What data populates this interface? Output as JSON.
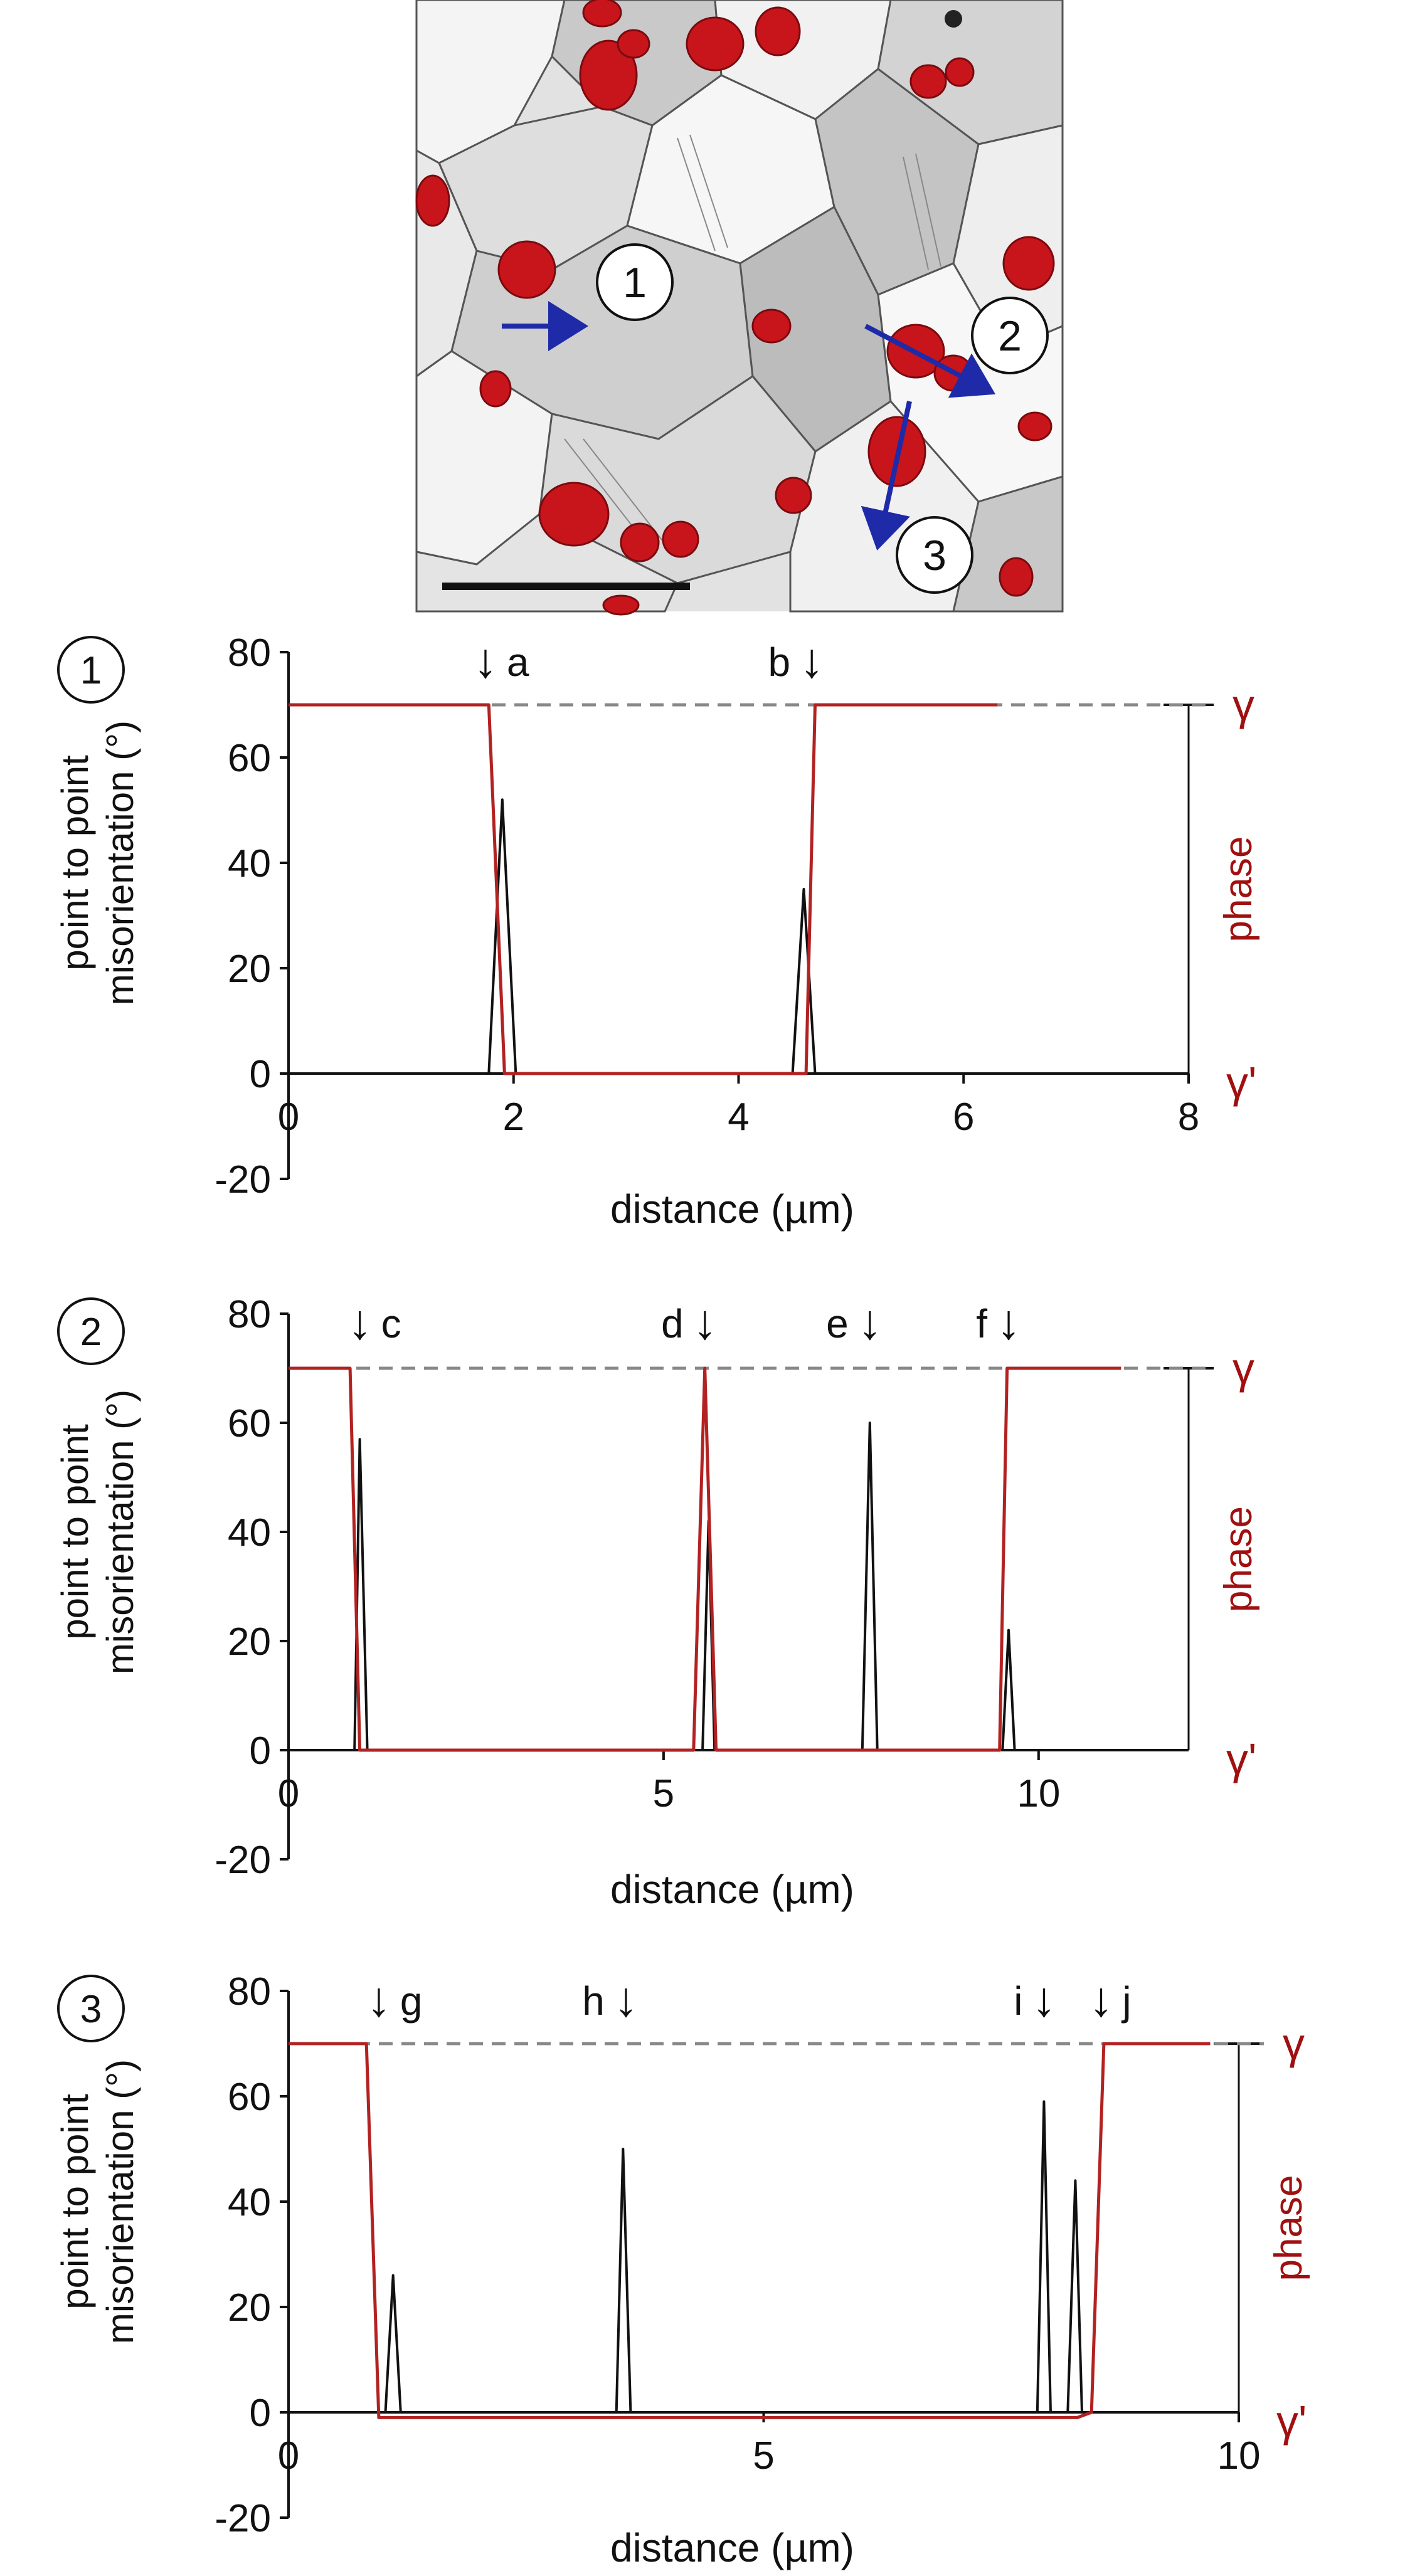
{
  "micrograph": {
    "description_marks": [
      "1",
      "2",
      "3"
    ]
  },
  "chart_data": [
    {
      "type": "line",
      "panel_label": "1",
      "xlabel": "distance (µm)",
      "ylabel_line1": "point  to point",
      "ylabel_line2": "misorientation (°)",
      "y2label": "phase",
      "y2_top_label": "γ",
      "y2_bottom_label": "γ'",
      "xlim": [
        0,
        8
      ],
      "ylim": [
        -20,
        80
      ],
      "xticks": [
        0,
        2,
        4,
        6,
        8
      ],
      "yticks": [
        -20,
        0,
        20,
        40,
        60,
        80
      ],
      "reference_level": 70,
      "series": [
        {
          "name": "point to point misorientation",
          "color": "#111111",
          "x": [
            0,
            1.7,
            1.78,
            1.9,
            2.02,
            2.1,
            4.4,
            4.48,
            4.58,
            4.68,
            4.76,
            6.3
          ],
          "y": [
            0,
            0,
            0,
            52,
            0,
            0,
            0,
            0,
            35,
            0,
            0,
            0
          ]
        },
        {
          "name": "phase",
          "color": "#b22222",
          "x": [
            0,
            1.72,
            1.78,
            1.92,
            4.46,
            4.6,
            4.68,
            6.3
          ],
          "y": [
            70,
            70,
            70,
            0,
            0,
            0,
            70,
            70
          ]
        }
      ],
      "annotations": [
        {
          "label": "a",
          "x": 1.75,
          "side": "right"
        },
        {
          "label": "b",
          "x": 4.65,
          "side": "left"
        }
      ]
    },
    {
      "type": "line",
      "panel_label": "2",
      "xlabel": "distance (µm)",
      "ylabel_line1": "point to point",
      "ylabel_line2": "misorientation (°)",
      "y2label": "phase",
      "y2_top_label": "γ",
      "y2_bottom_label": "γ'",
      "xlim": [
        0,
        12
      ],
      "ylim": [
        -20,
        80
      ],
      "xticks": [
        0,
        5,
        10
      ],
      "yticks": [
        -20,
        0,
        20,
        40,
        60,
        80
      ],
      "reference_level": 70,
      "series": [
        {
          "name": "point to point misorientation",
          "color": "#111111",
          "x": [
            0,
            0.8,
            0.88,
            0.95,
            1.05,
            1.15,
            5.45,
            5.52,
            5.6,
            5.68,
            5.75,
            7.55,
            7.65,
            7.75,
            7.85,
            7.95,
            9.45,
            9.52,
            9.6,
            9.68,
            9.75,
            10.9
          ],
          "y": [
            0,
            0,
            0,
            57,
            0,
            0,
            0,
            0,
            42,
            0,
            0,
            0,
            0,
            60,
            0,
            0,
            0,
            0,
            22,
            0,
            0,
            0
          ]
        },
        {
          "name": "phase",
          "color": "#b22222",
          "x": [
            0,
            0.75,
            0.82,
            0.95,
            5.4,
            5.55,
            5.7,
            9.35,
            9.48,
            9.58,
            11.1
          ],
          "y": [
            70,
            70,
            70,
            0,
            0,
            70,
            0,
            0,
            0,
            70,
            70
          ]
        }
      ],
      "annotations": [
        {
          "label": "c",
          "x": 0.95,
          "side": "right"
        },
        {
          "label": "d",
          "x": 5.55,
          "side": "left"
        },
        {
          "label": "e",
          "x": 7.75,
          "side": "left"
        },
        {
          "label": "f",
          "x": 9.6,
          "side": "left"
        }
      ]
    },
    {
      "type": "line",
      "panel_label": "3",
      "xlabel": "distance (µm)",
      "ylabel_line1": "point to point",
      "ylabel_line2": "misorientation (°)",
      "y2label": "phase",
      "y2_top_label": "γ",
      "y2_bottom_label": "γ'",
      "xlim": [
        0,
        10
      ],
      "ylim": [
        -20,
        80
      ],
      "xticks": [
        0,
        5,
        10
      ],
      "yticks": [
        -20,
        0,
        20,
        40,
        60,
        80
      ],
      "reference_level": 70,
      "series": [
        {
          "name": "point to point misorientation",
          "color": "#111111",
          "x": [
            0,
            0.95,
            1.02,
            1.1,
            1.18,
            1.25,
            3.4,
            3.45,
            3.52,
            3.6,
            3.65,
            7.8,
            7.88,
            7.95,
            8.02,
            8.1,
            8.15,
            8.2,
            8.28,
            8.35,
            8.4,
            9.5
          ],
          "y": [
            0,
            0,
            0,
            26,
            0,
            0,
            0,
            0,
            50,
            0,
            0,
            0,
            0,
            59,
            0,
            0,
            0,
            0,
            44,
            0,
            0,
            0
          ]
        },
        {
          "name": "phase",
          "color": "#b22222",
          "x": [
            0,
            0.75,
            0.82,
            0.95,
            8.3,
            8.45,
            8.58,
            9.7
          ],
          "y": [
            70,
            70,
            70,
            -1,
            -1,
            0,
            70,
            70
          ]
        }
      ],
      "annotations": [
        {
          "label": "g",
          "x": 0.95,
          "side": "right"
        },
        {
          "label": "h",
          "x": 3.55,
          "side": "left"
        },
        {
          "label": "i",
          "x": 7.95,
          "side": "left"
        },
        {
          "label": "j",
          "x": 8.55,
          "side": "right"
        }
      ]
    }
  ]
}
